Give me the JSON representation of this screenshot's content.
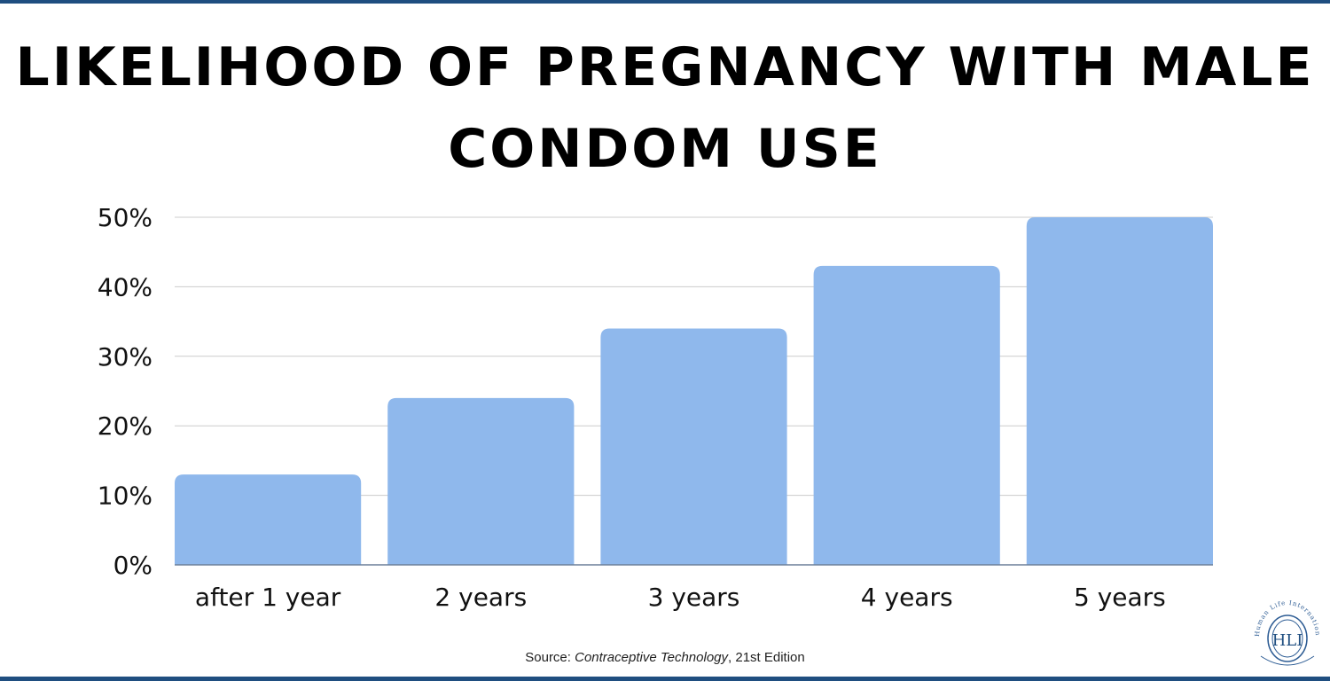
{
  "chart_data": {
    "type": "bar",
    "title": "Likelihood of Pregnancy with Male Condom Use",
    "categories": [
      "after 1 year",
      "2 years",
      "3 years",
      "4 years",
      "5 years"
    ],
    "values": [
      13,
      24,
      34,
      43,
      50
    ],
    "ylim": [
      0,
      50
    ],
    "yticks": [
      0,
      10,
      20,
      30,
      40,
      50
    ],
    "ytick_labels": [
      "0%",
      "10%",
      "20%",
      "30%",
      "40%",
      "50%"
    ],
    "xlabel": "",
    "ylabel": "",
    "grid": true,
    "legend": "none",
    "bar_color": "#8fb8ec"
  },
  "source": {
    "prefix": "Source: ",
    "work": "Contraceptive Technology",
    "suffix": ", 21st Edition"
  },
  "logo": {
    "text": "Human Life International",
    "initials": "HLI"
  },
  "colors": {
    "border": "#1f4e80",
    "grid": "#cccccc",
    "axis": "#6b7f99"
  }
}
